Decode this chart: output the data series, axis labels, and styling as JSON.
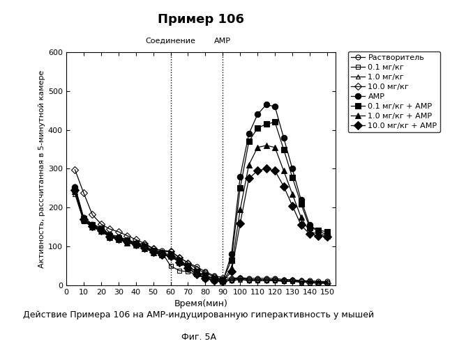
{
  "title": "Пример 106",
  "xlabel": "Время(мин)",
  "ylabel": "Активность, рассчитанная в 5-минутной камере",
  "caption_line1": "Действие Примера 106 на АМР-индуцированную гиперактивность у мышей",
  "caption_line2": "Фиг. 5А",
  "vline1_x": 60,
  "vline2_x": 90,
  "vline1_label": "Соединение",
  "vline2_label": "АМР",
  "ylim": [
    0,
    600
  ],
  "xlim": [
    0,
    155
  ],
  "xticks": [
    0,
    10,
    20,
    30,
    40,
    50,
    60,
    70,
    80,
    90,
    100,
    110,
    120,
    130,
    140,
    150
  ],
  "yticks": [
    0,
    100,
    200,
    300,
    400,
    500,
    600
  ],
  "series": {
    "Растворитель": {
      "x": [
        5,
        10,
        15,
        20,
        25,
        30,
        35,
        40,
        45,
        50,
        55,
        60,
        65,
        70,
        75,
        80,
        85,
        90,
        95,
        100,
        105,
        110,
        115,
        120,
        125,
        130,
        135,
        140,
        145,
        150
      ],
      "y": [
        255,
        175,
        158,
        148,
        132,
        125,
        118,
        110,
        105,
        95,
        90,
        88,
        72,
        58,
        48,
        35,
        25,
        20,
        18,
        20,
        18,
        18,
        18,
        18,
        15,
        15,
        12,
        12,
        10,
        10
      ],
      "marker": "o",
      "markersize": 5,
      "fillstyle": "none"
    },
    "0.1 мг/кг": {
      "x": [
        5,
        10,
        15,
        20,
        25,
        30,
        35,
        40,
        45,
        50,
        55,
        60,
        65,
        70,
        75,
        80,
        85,
        90,
        95,
        100,
        105,
        110,
        115,
        120,
        125,
        130,
        135,
        140,
        145,
        150
      ],
      "y": [
        248,
        170,
        155,
        145,
        130,
        122,
        115,
        108,
        100,
        90,
        85,
        50,
        38,
        35,
        28,
        22,
        18,
        15,
        15,
        18,
        15,
        15,
        15,
        15,
        12,
        12,
        10,
        10,
        8,
        8
      ],
      "marker": "s",
      "markersize": 5,
      "fillstyle": "none"
    },
    "1.0 мг/кг": {
      "x": [
        5,
        10,
        15,
        20,
        25,
        30,
        35,
        40,
        45,
        50,
        55,
        60,
        65,
        70,
        75,
        80,
        85,
        90,
        95,
        100,
        105,
        110,
        115,
        120,
        125,
        130,
        135,
        140,
        145,
        150
      ],
      "y": [
        235,
        165,
        150,
        140,
        125,
        118,
        112,
        105,
        98,
        88,
        80,
        78,
        62,
        48,
        35,
        25,
        18,
        12,
        12,
        15,
        12,
        12,
        12,
        12,
        10,
        10,
        8,
        8,
        6,
        6
      ],
      "marker": "^",
      "markersize": 5,
      "fillstyle": "none"
    },
    "10.0 мг/кг": {
      "x": [
        5,
        10,
        15,
        20,
        25,
        30,
        35,
        40,
        45,
        50,
        55,
        60,
        65,
        70,
        75,
        80,
        85,
        90,
        95,
        100,
        105,
        110,
        115,
        120,
        125,
        130,
        135,
        140,
        145,
        150
      ],
      "y": [
        298,
        238,
        182,
        158,
        145,
        138,
        128,
        118,
        108,
        95,
        85,
        88,
        72,
        58,
        42,
        32,
        22,
        15,
        15,
        18,
        15,
        15,
        15,
        14,
        12,
        12,
        10,
        8,
        6,
        5
      ],
      "marker": "D",
      "markersize": 5,
      "fillstyle": "none"
    },
    "АМР": {
      "x": [
        5,
        10,
        15,
        20,
        25,
        30,
        35,
        40,
        45,
        50,
        55,
        60,
        65,
        70,
        75,
        80,
        85,
        90,
        95,
        100,
        105,
        110,
        115,
        120,
        125,
        130,
        135,
        140,
        145,
        150
      ],
      "y": [
        252,
        172,
        152,
        142,
        126,
        120,
        112,
        106,
        96,
        86,
        78,
        75,
        60,
        45,
        28,
        18,
        12,
        10,
        80,
        280,
        390,
        440,
        465,
        460,
        380,
        300,
        220,
        155,
        140,
        130
      ],
      "marker": "o",
      "markersize": 6,
      "fillstyle": "full"
    },
    "0.1 мг/кг + АМР": {
      "x": [
        5,
        10,
        15,
        20,
        25,
        30,
        35,
        40,
        45,
        50,
        55,
        60,
        65,
        70,
        75,
        80,
        85,
        90,
        95,
        100,
        105,
        110,
        115,
        120,
        125,
        130,
        135,
        140,
        145,
        150
      ],
      "y": [
        248,
        172,
        155,
        145,
        128,
        122,
        115,
        108,
        100,
        90,
        82,
        80,
        65,
        50,
        35,
        25,
        18,
        12,
        65,
        250,
        370,
        405,
        415,
        420,
        350,
        278,
        210,
        148,
        142,
        138
      ],
      "marker": "s",
      "markersize": 6,
      "fillstyle": "full"
    },
    "1.0 мг/кг + АМР": {
      "x": [
        5,
        10,
        15,
        20,
        25,
        30,
        35,
        40,
        45,
        50,
        55,
        60,
        65,
        70,
        75,
        80,
        85,
        90,
        95,
        100,
        105,
        110,
        115,
        120,
        125,
        130,
        135,
        140,
        145,
        150
      ],
      "y": [
        242,
        168,
        150,
        140,
        124,
        118,
        110,
        104,
        95,
        85,
        78,
        75,
        60,
        45,
        30,
        20,
        14,
        10,
        45,
        195,
        310,
        355,
        360,
        355,
        295,
        235,
        175,
        138,
        132,
        128
      ],
      "marker": "^",
      "markersize": 6,
      "fillstyle": "full"
    },
    "10.0 мг/кг + АМР": {
      "x": [
        5,
        10,
        15,
        20,
        25,
        30,
        35,
        40,
        45,
        50,
        55,
        60,
        65,
        70,
        75,
        80,
        85,
        90,
        95,
        100,
        105,
        110,
        115,
        120,
        125,
        130,
        135,
        140,
        145,
        150
      ],
      "y": [
        245,
        170,
        152,
        142,
        126,
        120,
        112,
        106,
        96,
        86,
        78,
        75,
        60,
        45,
        28,
        18,
        12,
        10,
        35,
        160,
        275,
        295,
        300,
        295,
        255,
        205,
        155,
        132,
        128,
        125
      ],
      "marker": "D",
      "markersize": 6,
      "fillstyle": "full"
    }
  }
}
